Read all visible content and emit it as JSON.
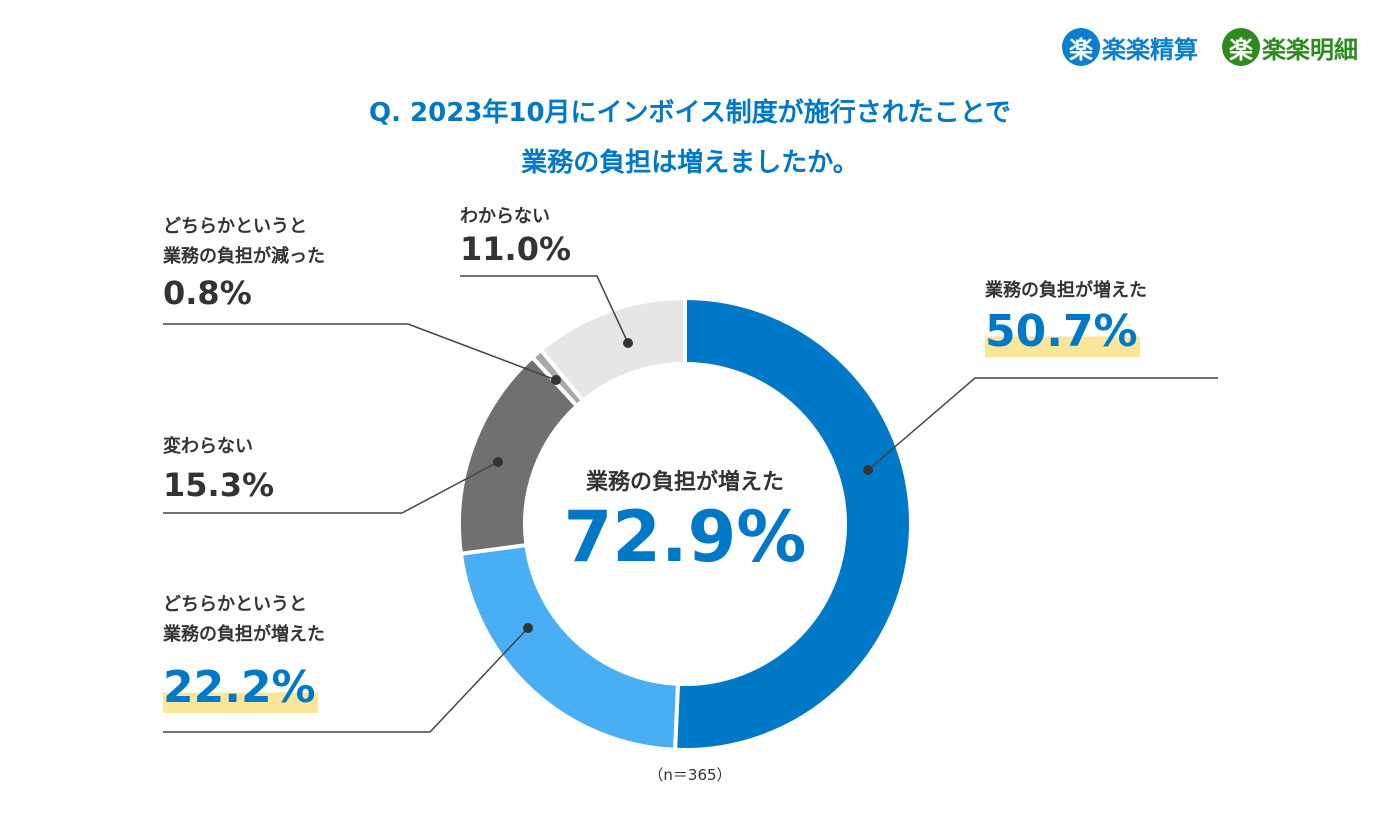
{
  "chart_data": {
    "type": "donut",
    "title": [
      "Q. 2023年10月にインボイス制度が施行されたことで",
      "業務の負担は増えましたか。"
    ],
    "categories": [
      "業務の負担が増えた",
      "どちらかというと\n業務の負担が増えた",
      "変わらない",
      "どちらかというと\n業務の負担が減った",
      "わからない"
    ],
    "values": [
      50.7,
      22.2,
      15.3,
      0.8,
      11.0
    ],
    "value_labels": [
      "50.7%",
      "22.2%",
      "15.3%",
      "0.8%",
      "11.0%"
    ],
    "colors": [
      "#0078c8",
      "#4aaef5",
      "#707070",
      "#a8a8a8",
      "#e6e6e6"
    ],
    "center_text": [
      "業務の負担が増えた",
      "72.9%"
    ],
    "note": "（n＝365）",
    "logos": [
      {
        "icon": "楽",
        "name": "楽楽精算",
        "color": "#0a7fd0"
      },
      {
        "icon": "楽",
        "name": "楽楽明細",
        "color": "#2e8a1e"
      }
    ]
  }
}
